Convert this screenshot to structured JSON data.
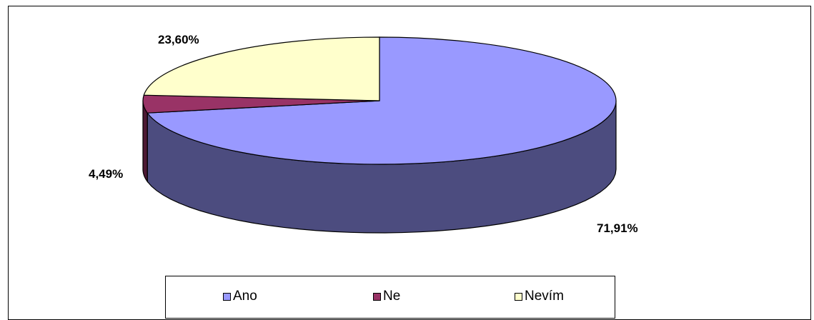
{
  "chart_data": {
    "type": "pie",
    "style": "3d",
    "slices": [
      {
        "label": "Ano",
        "value": 71.91,
        "data_label": "71,91%",
        "color": "#9999ff",
        "side_color": "#4c4c7f"
      },
      {
        "label": "Ne",
        "value": 4.49,
        "data_label": "4,49%",
        "color": "#993366",
        "side_color": "#4c1933"
      },
      {
        "label": "Nevím",
        "value": 23.6,
        "data_label": "23,60%",
        "color": "#ffffcc",
        "side_color": "#7f7f66"
      }
    ],
    "legend": {
      "position": "bottom",
      "entries": [
        "Ano",
        "Ne",
        "Nevím"
      ]
    }
  }
}
